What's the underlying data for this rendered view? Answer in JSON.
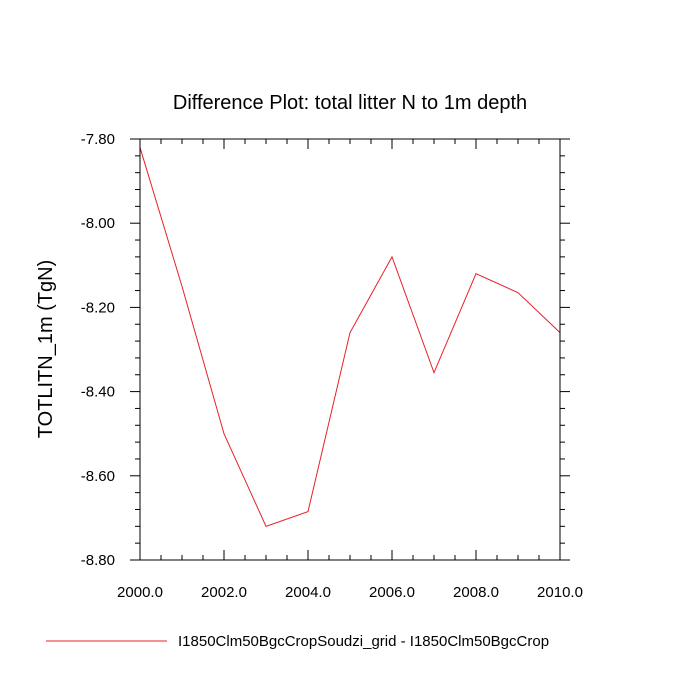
{
  "chart_data": {
    "type": "line",
    "title": "Difference Plot: total litter N to 1m depth",
    "xlabel": "",
    "ylabel": "TOTLITN_1m  (TgN)",
    "xlim": [
      2000,
      2010
    ],
    "ylim": [
      -8.8,
      -7.8
    ],
    "x_ticks": [
      "2000.0",
      "2002.0",
      "2004.0",
      "2006.0",
      "2008.0",
      "2010.0"
    ],
    "y_ticks": [
      "-7.80",
      "-8.00",
      "-8.20",
      "-8.40",
      "-8.60",
      "-8.80"
    ],
    "grid": false,
    "legend_position": "bottom",
    "series": [
      {
        "name": "I1850Clm50BgcCropSoudzi_grid - I1850Clm50BgcCrop",
        "color": "#e8202a",
        "x": [
          2000,
          2001,
          2002,
          2003,
          2004,
          2005,
          2006,
          2007,
          2008,
          2009,
          2010
        ],
        "y": [
          -7.82,
          -8.15,
          -8.5,
          -8.72,
          -8.685,
          -8.26,
          -8.08,
          -8.355,
          -8.12,
          -8.165,
          -8.26
        ]
      }
    ]
  }
}
